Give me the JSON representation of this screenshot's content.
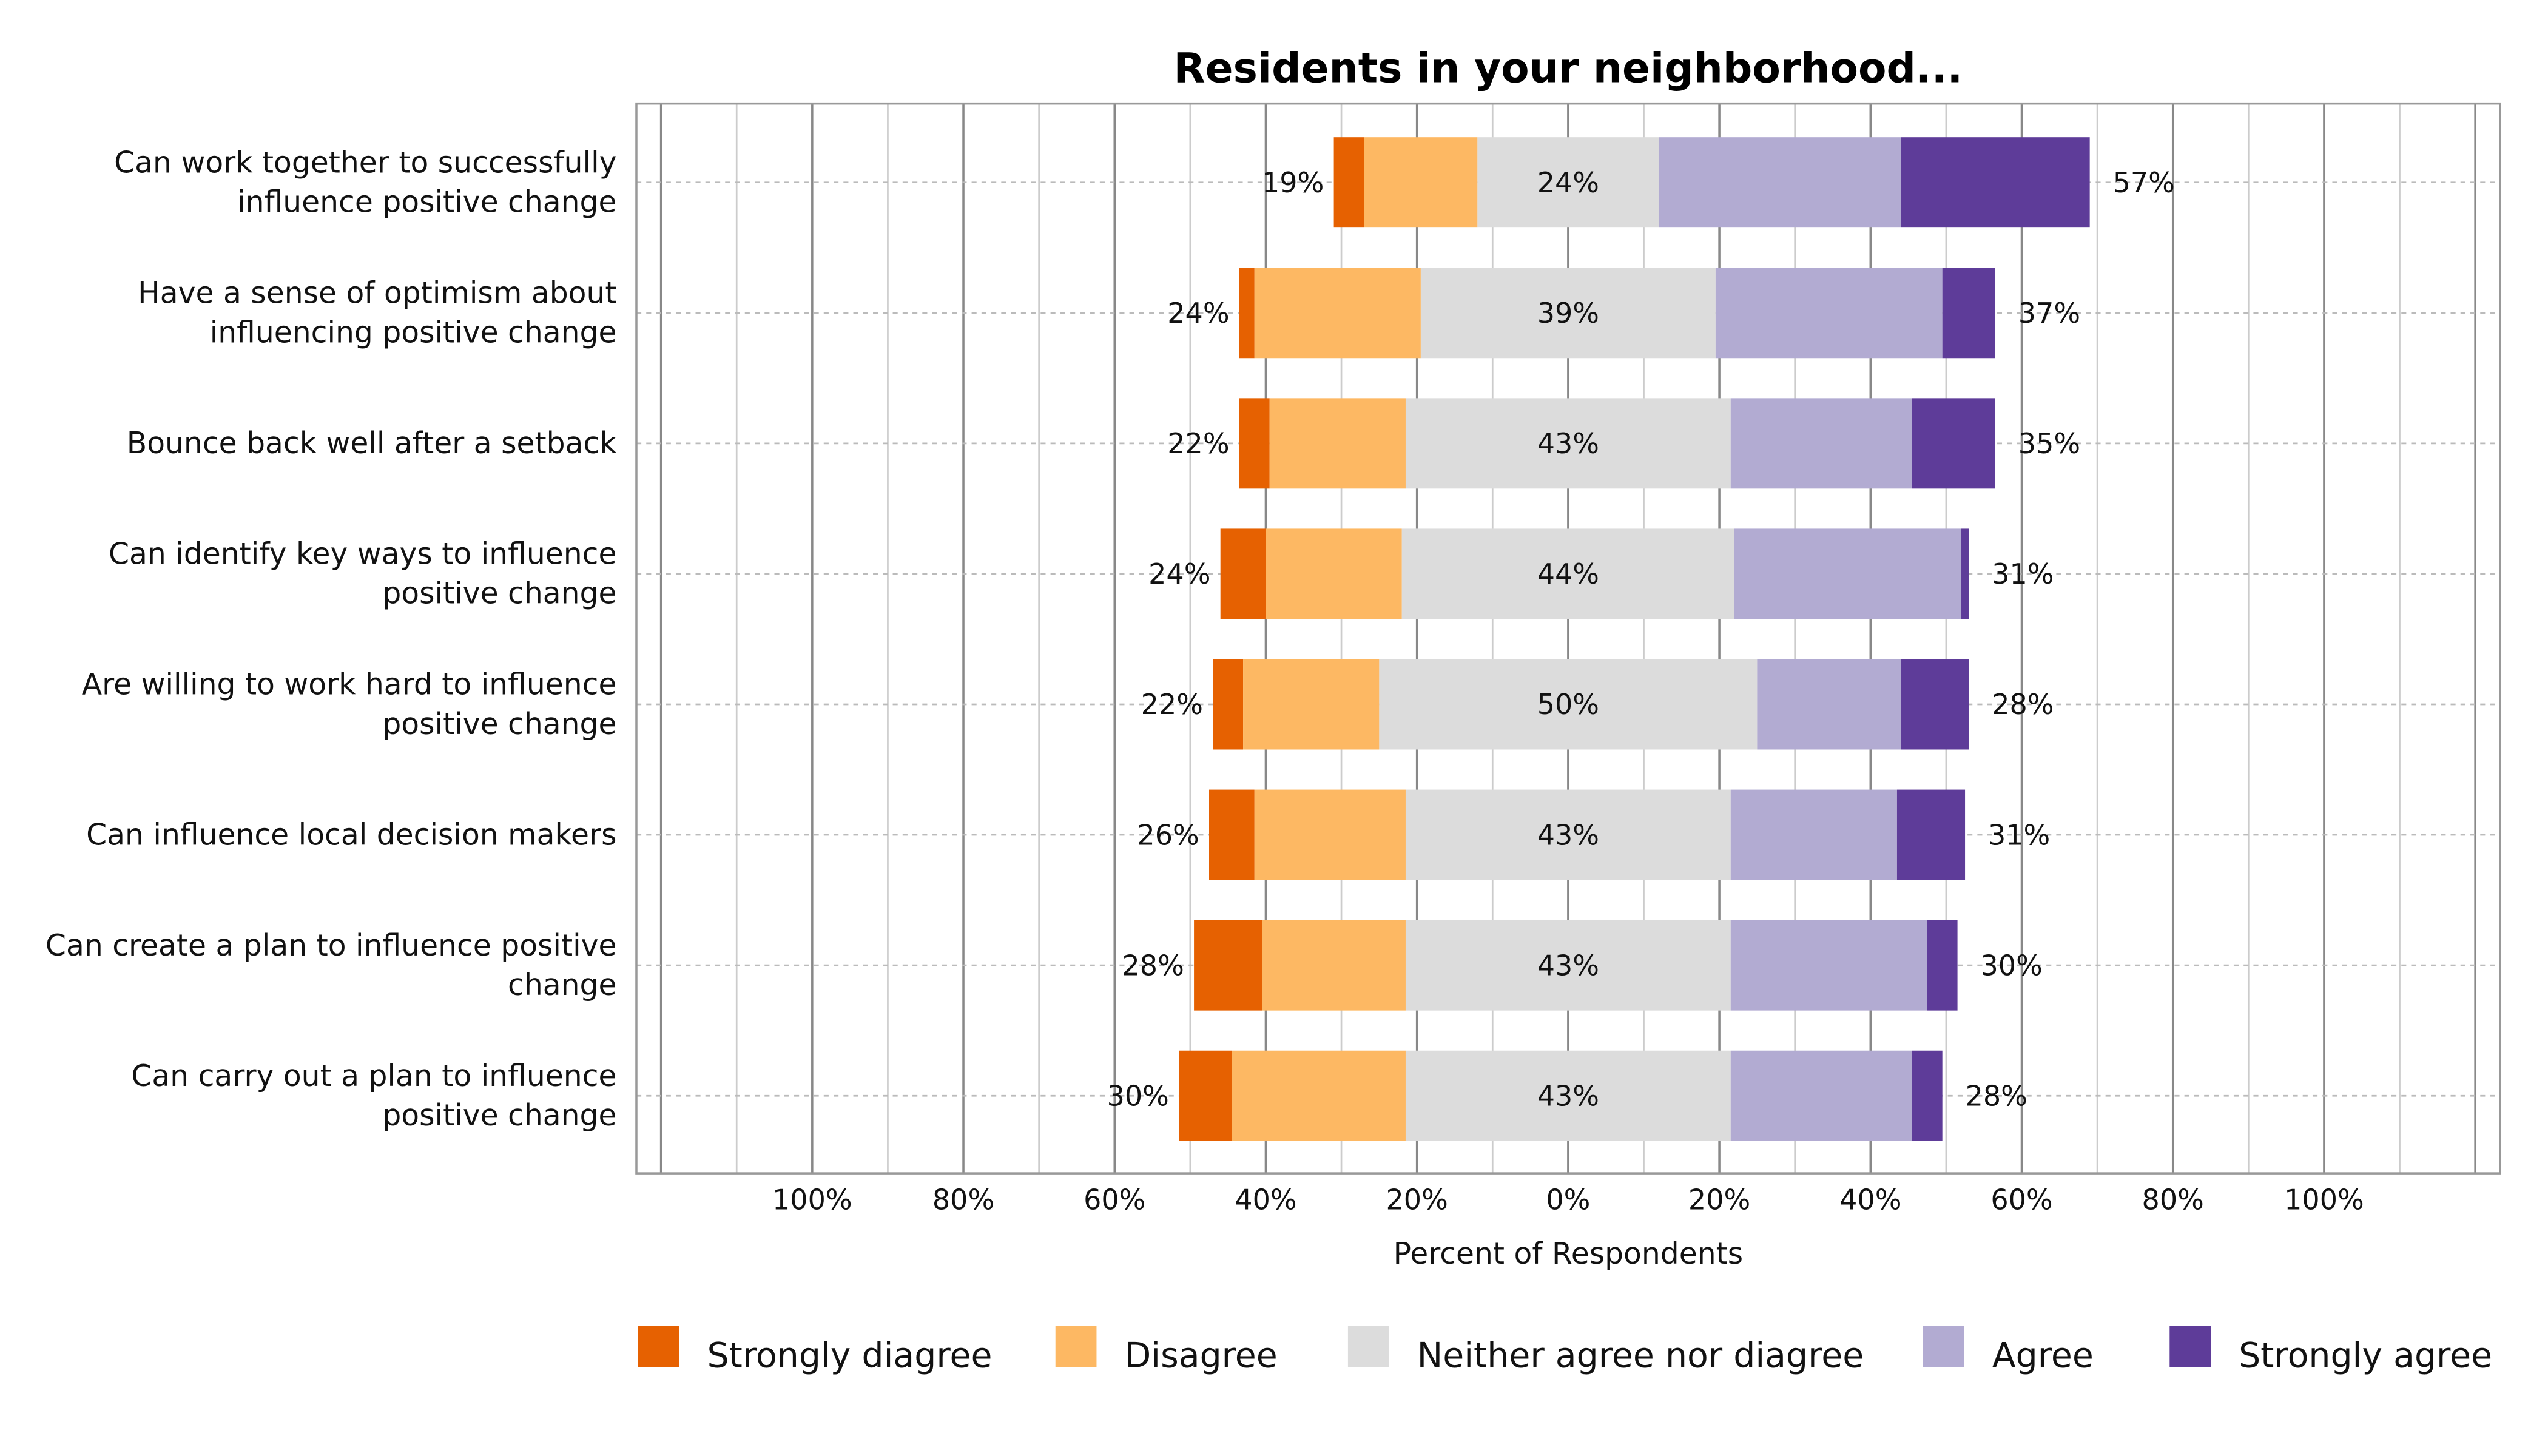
{
  "chart_data": {
    "type": "bar",
    "subtype": "diverging-stacked-horizontal",
    "title": "Residents in your neighborhood...",
    "xlabel": "Percent of Respondents",
    "ylabel": "",
    "xlim": [
      -100,
      100
    ],
    "x_tick_labels": [
      "100%",
      "80%",
      "60%",
      "40%",
      "20%",
      "0%",
      "20%",
      "40%",
      "60%",
      "80%",
      "100%"
    ],
    "x_ticks": [
      -100,
      -80,
      -60,
      -40,
      -20,
      0,
      20,
      40,
      60,
      80,
      100
    ],
    "grid": true,
    "legend_position": "bottom",
    "categories": [
      [
        "Can work together to successfully",
        "influence positive change"
      ],
      [
        "Have a sense of optimism about",
        "influencing positive change"
      ],
      [
        "Bounce back well after a setback"
      ],
      [
        "Can identify key ways to influence",
        "positive change"
      ],
      [
        "Are willing to work hard to influence",
        "positive change"
      ],
      [
        "Can influence local decision makers"
      ],
      [
        "Can create a plan to influence positive",
        "change"
      ],
      [
        "Can carry out a plan to influence",
        "positive change"
      ]
    ],
    "series": [
      {
        "name": "Strongly diagree",
        "color": "#e66101",
        "values": [
          4,
          2,
          4,
          6,
          4,
          6,
          9,
          7
        ]
      },
      {
        "name": "Disagree",
        "color": "#fdb863",
        "values": [
          15,
          22,
          18,
          18,
          18,
          20,
          19,
          23
        ]
      },
      {
        "name": "Neither agree nor diagree",
        "color": "#dcdcdc",
        "values": [
          24,
          39,
          43,
          44,
          50,
          43,
          43,
          43
        ]
      },
      {
        "name": "Agree",
        "color": "#b2abd2",
        "values": [
          32,
          30,
          24,
          30,
          19,
          22,
          26,
          24
        ]
      },
      {
        "name": "Strongly agree",
        "color": "#5e3c99",
        "values": [
          25,
          7,
          11,
          1,
          9,
          9,
          4,
          4
        ]
      }
    ],
    "labels_left": [
      "19%",
      "24%",
      "22%",
      "24%",
      "22%",
      "26%",
      "28%",
      "30%"
    ],
    "labels_center": [
      "24%",
      "39%",
      "43%",
      "44%",
      "50%",
      "43%",
      "43%",
      "43%"
    ],
    "labels_right": [
      "57%",
      "37%",
      "35%",
      "31%",
      "28%",
      "31%",
      "30%",
      "28%"
    ]
  }
}
